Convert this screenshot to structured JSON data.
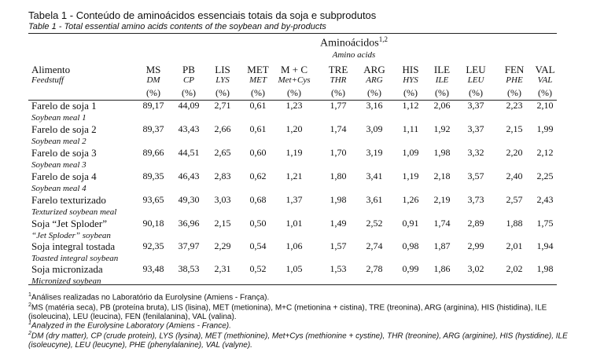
{
  "header": {
    "title": "Tabela 1 - Conteúdo de aminoácidos essenciais totais da soja e subprodutos",
    "subtitle": "Table 1 - Total essential amino acids contents of the soybean and by-products"
  },
  "table": {
    "group": {
      "label": "Aminoácidos",
      "mark": "1,2",
      "label_en": "Amino acids"
    },
    "columns": [
      {
        "label": "Alimento",
        "label_en": "Feedstuff"
      },
      {
        "label": "MS",
        "label_en": "DM",
        "unit": "(%)"
      },
      {
        "label": "PB",
        "label_en": "CP",
        "unit": "(%)"
      },
      {
        "label": "LIS",
        "label_en": "LYS",
        "unit": "(%)"
      },
      {
        "label": "MET",
        "label_en": "MET",
        "unit": "(%)"
      },
      {
        "label": "M + C",
        "label_en": "Met+Cys",
        "unit": "(%)"
      },
      {
        "label": "TRE",
        "label_en": "THR",
        "unit": "(%)"
      },
      {
        "label": "ARG",
        "label_en": "ARG",
        "unit": "(%)"
      },
      {
        "label": "HIS",
        "label_en": "HYS",
        "unit": "(%)"
      },
      {
        "label": "ILE",
        "label_en": "ILE",
        "unit": "(%)"
      },
      {
        "label": "LEU",
        "label_en": "LEU",
        "unit": "(%)"
      },
      {
        "label": "FEN",
        "label_en": "PHE",
        "unit": "(%)"
      },
      {
        "label": "VAL",
        "label_en": "VAL",
        "unit": "(%)"
      }
    ],
    "rows": [
      {
        "name": "Farelo de soja 1",
        "name_en": "Soybean meal 1",
        "values": [
          "89,17",
          "44,09",
          "2,71",
          "0,61",
          "1,23",
          "1,77",
          "3,16",
          "1,12",
          "2,06",
          "3,37",
          "2,23",
          "2,10"
        ]
      },
      {
        "name": "Farelo de soja 2",
        "name_en": "Soybean meal 2",
        "values": [
          "89,37",
          "43,43",
          "2,66",
          "0,61",
          "1,20",
          "1,74",
          "3,09",
          "1,11",
          "1,92",
          "3,37",
          "2,15",
          "1,99"
        ]
      },
      {
        "name": "Farelo de soja 3",
        "name_en": "Soybean meal 3",
        "values": [
          "89,66",
          "44,51",
          "2,65",
          "0,60",
          "1,19",
          "1,70",
          "3,19",
          "1,09",
          "1,98",
          "3,32",
          "2,20",
          "2,12"
        ]
      },
      {
        "name": "Farelo de soja 4",
        "name_en": "Soybean meal 4",
        "values": [
          "89,35",
          "46,43",
          "2,83",
          "0,62",
          "1,21",
          "1,80",
          "3,41",
          "1,19",
          "2,18",
          "3,57",
          "2,40",
          "2,25"
        ]
      },
      {
        "name": "Farelo texturizado",
        "name_en": "Texturized soybean meal",
        "values": [
          "93,65",
          "49,30",
          "3,03",
          "0,68",
          "1,37",
          "1,98",
          "3,61",
          "1,26",
          "2,19",
          "3,73",
          "2,57",
          "2,43"
        ]
      },
      {
        "name": "Soja “Jet Sploder”",
        "name_en": "“Jet Sploder” soybean",
        "values": [
          "90,18",
          "36,96",
          "2,15",
          "0,50",
          "1,01",
          "1,49",
          "2,52",
          "0,91",
          "1,74",
          "2,89",
          "1,88",
          "1,75"
        ]
      },
      {
        "name": "Soja integral tostada",
        "name_en": "Toasted integral soybean",
        "values": [
          "92,35",
          "37,97",
          "2,29",
          "0,54",
          "1,06",
          "1,57",
          "2,74",
          "0,98",
          "1,87",
          "2,99",
          "2,01",
          "1,94"
        ]
      },
      {
        "name": "Soja micronizada",
        "name_en": "Micronized soybean",
        "values": [
          "93,48",
          "38,53",
          "2,31",
          "0,52",
          "1,05",
          "1,53",
          "2,78",
          "0,99",
          "1,86",
          "3,02",
          "2,02",
          "1,98"
        ]
      }
    ]
  },
  "footnotes": [
    {
      "mark": "1",
      "text": "Análises realizadas no Laboratório da Eurolysine (Amiens - França)."
    },
    {
      "mark": "2",
      "text": "MS (matéria seca), PB (proteína bruta), LIS (lisina), MET (metionina), M+C (metionina + cistina), TRE (treonina), ARG (arginina), HIS (histidina), ILE (isoleucina), LEU (leucina), FEN (fenilalanina), VAL (valina)."
    },
    {
      "mark": "1",
      "text": "Analyzed in the Eurolysine Laboratory (Amiens - France)."
    },
    {
      "mark": "2",
      "text": "DM (dry matter), CP (crude protein), LYS (lysina), MET (methionine), Met+Cys (methionine + cystine), THR (treonine), ARG (arginine), HIS (hystidine), ILE (isoleucyne), LEU (leucyne), PHE (phenylalanine), VAL (valyne)."
    }
  ]
}
